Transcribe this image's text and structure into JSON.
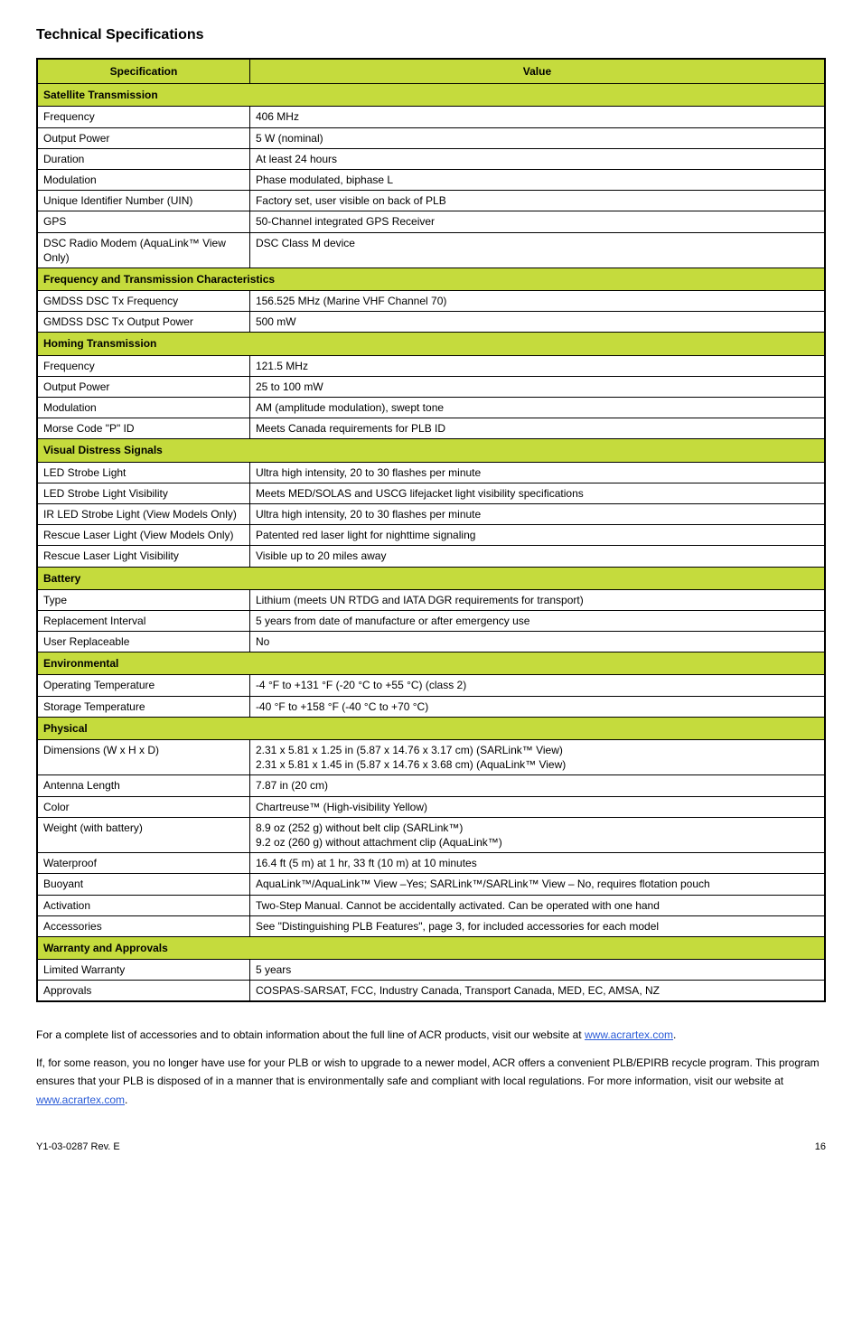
{
  "title": "Technical Specifications",
  "header": {
    "c1": "Specification",
    "c2": "Value"
  },
  "s1": {
    "title": "Satellite Transmission",
    "rows": [
      [
        "Frequency",
        "406 MHz"
      ],
      [
        "Output Power",
        "5 W (nominal)"
      ],
      [
        "Duration",
        "At least 24 hours"
      ],
      [
        "Modulation",
        "Phase modulated, biphase L"
      ],
      [
        "Unique Identifier Number (UIN)",
        "Factory set, user visible on back of PLB"
      ],
      [
        "GPS",
        "50-Channel integrated GPS Receiver"
      ],
      [
        "DSC Radio Modem (AquaLink™ View Only)",
        "DSC Class M device"
      ]
    ]
  },
  "s2": {
    "title": "Frequency and Transmission Characteristics",
    "rows": [
      [
        "GMDSS DSC Tx Frequency",
        "156.525 MHz (Marine VHF Channel 70)"
      ],
      [
        "GMDSS DSC Tx Output Power",
        "500 mW"
      ]
    ]
  },
  "s3": {
    "title": "Homing Transmission",
    "rows": [
      [
        "Frequency",
        "121.5 MHz"
      ],
      [
        "Output Power",
        "25 to 100 mW"
      ],
      [
        "Modulation",
        "AM (amplitude modulation), swept tone"
      ],
      [
        "Morse Code \"P\" ID",
        "Meets Canada requirements for PLB ID"
      ]
    ]
  },
  "s4": {
    "title": "Visual Distress Signals",
    "rows": [
      [
        "LED Strobe Light",
        "Ultra high intensity, 20 to 30 flashes per minute"
      ],
      [
        "LED Strobe Light Visibility",
        "Meets MED/SOLAS and USCG lifejacket light visibility specifications"
      ],
      [
        "IR LED Strobe Light (View Models Only)",
        "Ultra high intensity, 20 to 30 flashes per minute"
      ],
      [
        "Rescue Laser Light (View Models Only)",
        "Patented red laser light for nighttime signaling"
      ],
      [
        "Rescue Laser Light Visibility",
        "Visible up to 20 miles away"
      ]
    ]
  },
  "s5": {
    "title": "Battery",
    "rows": [
      [
        "Type",
        "Lithium (meets UN RTDG and IATA DGR requirements for transport)"
      ],
      [
        "Replacement Interval",
        "5 years from date of manufacture or after emergency use"
      ],
      [
        "User Replaceable",
        "No"
      ]
    ]
  },
  "s6": {
    "title": "Environmental",
    "rows": [
      [
        "Operating Temperature",
        "-4 °F to +131 °F (-20 °C to +55 °C) (class 2)"
      ],
      [
        "Storage Temperature",
        "-40 °F to +158 °F (-40 °C to +70 °C)"
      ]
    ]
  },
  "s7": {
    "title": "Physical",
    "rows": [
      [
        "Dimensions (W x H x D)",
        "2.31 x 5.81 x 1.25 in (5.87 x 14.76 x 3.17 cm) (SARLink™ View)\n2.31 x 5.81 x 1.45 in (5.87 x 14.76 x 3.68 cm) (AquaLink™ View)"
      ],
      [
        "Antenna Length",
        "7.87 in (20 cm)"
      ],
      [
        "Color",
        "Chartreuse™ (High-visibility Yellow)"
      ],
      [
        "Weight (with battery)",
        "8.9 oz (252 g) without belt clip (SARLink™)\n9.2 oz (260 g) without attachment clip (AquaLink™)"
      ],
      [
        "Waterproof",
        "16.4 ft (5 m) at 1 hr, 33 ft (10 m) at 10 minutes"
      ],
      [
        "Buoyant",
        "AquaLink™/AquaLink™ View –Yes; SARLink™/SARLink™ View – No, requires flotation pouch"
      ],
      [
        "Activation",
        "Two-Step Manual. Cannot be accidentally activated. Can be operated with one hand"
      ],
      [
        "Accessories",
        "See \"Distinguishing PLB Features\", page 3, for included accessories for each model"
      ]
    ]
  },
  "s8": {
    "title": "Warranty and Approvals",
    "rows": [
      [
        "Limited Warranty",
        "5 years"
      ],
      [
        "Approvals",
        "COSPAS-SARSAT, FCC, Industry Canada, Transport Canada, MED, EC, AMSA, NZ"
      ]
    ]
  },
  "footer": {
    "p1_a": "For a complete list of accessories and to obtain information about the full line of ACR products, visit our website at ",
    "p1_link": "www.acrartex.com",
    "p1_b": ".",
    "p2_a": "If, for some reason, you no longer have use for your PLB or wish to upgrade to a newer model, ACR offers a convenient PLB/EPIRB recycle program. This program ensures that your PLB is disposed of in a manner that is environmentally safe and compliant with local regulations. For more information, visit our website at ",
    "p2_link": "www.acrartex.com",
    "p2_b": "."
  },
  "bottom": {
    "doc": "Y1-03-0287 Rev. E",
    "page": "16"
  }
}
